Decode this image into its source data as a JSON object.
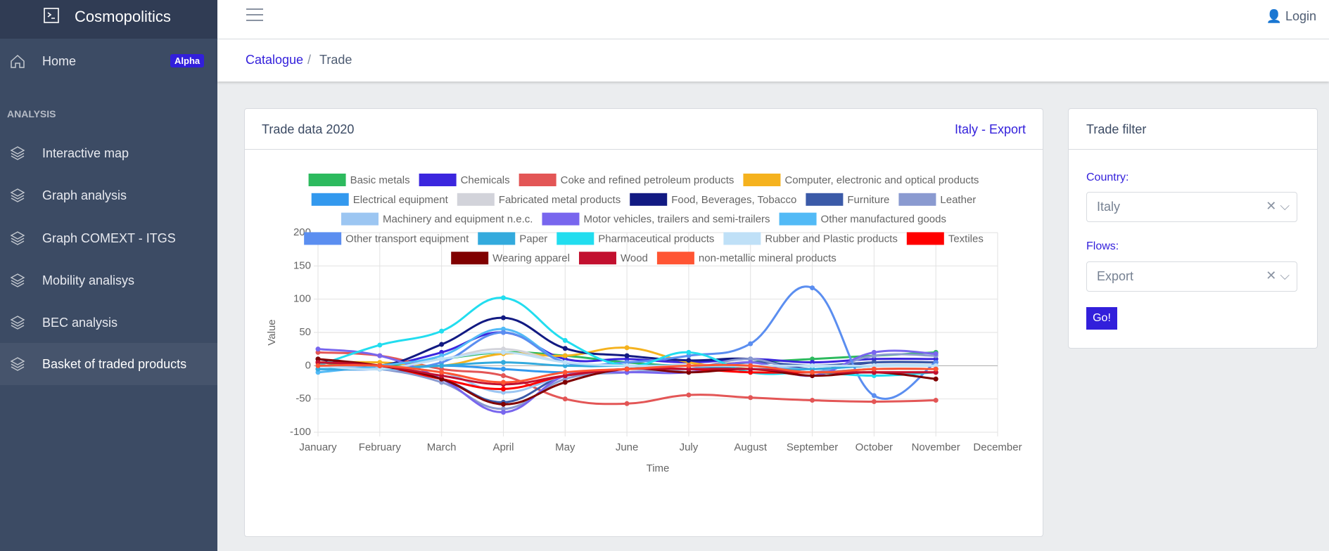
{
  "sidebar": {
    "brand": "Cosmopolitics",
    "home": "Home",
    "badge": "Alpha",
    "section": "ANALYSIS",
    "items": [
      "Interactive map",
      "Graph analysis",
      "Graph COMEXT - ITGS",
      "Mobility analisys",
      "BEC analysis",
      "Basket of traded products"
    ]
  },
  "header": {
    "login": "Login"
  },
  "breadcrumb": [
    "Catalogue",
    "Trade"
  ],
  "card": {
    "title": "Trade data 2020",
    "subtitle": "Italy - Export"
  },
  "filter": {
    "title": "Trade filter",
    "country_label": "Country:",
    "country": "Italy",
    "flows_label": "Flows:",
    "flows": "Export",
    "button": "Go!"
  },
  "chart_data": {
    "type": "line",
    "x_label": "Time",
    "y_label": "Value",
    "categories": [
      "January",
      "February",
      "March",
      "April",
      "May",
      "June",
      "July",
      "August",
      "September",
      "October",
      "November",
      "December"
    ],
    "ylim": [
      -100,
      200
    ],
    "yticks": [
      -100,
      -50,
      0,
      50,
      100,
      150,
      200
    ],
    "grid": true,
    "series": [
      {
        "name": "Basic metals",
        "color": "#2dba5e",
        "values": [
          5,
          0,
          10,
          20,
          15,
          5,
          0,
          5,
          10,
          15,
          20,
          null
        ]
      },
      {
        "name": "Chemicals",
        "color": "#3b26de",
        "values": [
          0,
          0,
          20,
          50,
          10,
          10,
          5,
          10,
          5,
          10,
          10,
          null
        ]
      },
      {
        "name": "Coke and refined petroleum products",
        "color": "#e35656",
        "values": [
          20,
          15,
          -5,
          -15,
          -50,
          -57,
          -44,
          -48,
          -52,
          -54,
          -52,
          null
        ]
      },
      {
        "name": "Computer, electronic and optical products",
        "color": "#f5b21e",
        "values": [
          5,
          5,
          0,
          18,
          15,
          27,
          5,
          -5,
          -10,
          -5,
          -5,
          null
        ]
      },
      {
        "name": "Electrical equipment",
        "color": "#3399ee",
        "values": [
          -5,
          -5,
          0,
          -5,
          -10,
          -5,
          -5,
          -5,
          -10,
          -5,
          -5,
          null
        ]
      },
      {
        "name": "Fabricated metal products",
        "color": "#d2d3da",
        "values": [
          0,
          -5,
          10,
          25,
          5,
          0,
          0,
          5,
          0,
          0,
          0,
          null
        ]
      },
      {
        "name": "Food, Beverages, Tobacco",
        "color": "#121a82",
        "values": [
          10,
          0,
          32,
          72,
          26,
          15,
          8,
          10,
          -5,
          5,
          5,
          null
        ]
      },
      {
        "name": "Furniture",
        "color": "#3b5aa8",
        "values": [
          0,
          -5,
          -20,
          -55,
          -15,
          -10,
          -5,
          5,
          0,
          5,
          5,
          null
        ]
      },
      {
        "name": "Leather",
        "color": "#8a9ad0",
        "values": [
          0,
          -5,
          -25,
          -65,
          -20,
          -10,
          -5,
          10,
          -10,
          15,
          15,
          null
        ]
      },
      {
        "name": "Machinery and equipment n.e.c.",
        "color": "#9cc6f2",
        "values": [
          0,
          -5,
          -10,
          -40,
          -15,
          -5,
          -5,
          0,
          -5,
          0,
          0,
          null
        ]
      },
      {
        "name": "Motor vehicles, trailers and semi-trailers",
        "color": "#7866ee",
        "values": [
          25,
          15,
          -20,
          -70,
          -15,
          -10,
          -10,
          5,
          -15,
          20,
          18,
          null
        ]
      },
      {
        "name": "Other manufactured goods",
        "color": "#52baf6",
        "values": [
          -10,
          0,
          15,
          55,
          5,
          0,
          -5,
          -5,
          -5,
          0,
          0,
          null
        ]
      },
      {
        "name": "Other transport equipment",
        "color": "#5b8ef0",
        "values": [
          -5,
          -5,
          5,
          50,
          5,
          5,
          15,
          33,
          117,
          -45,
          5,
          null
        ]
      },
      {
        "name": "Paper",
        "color": "#33aadd",
        "values": [
          -5,
          -5,
          0,
          5,
          0,
          0,
          0,
          -5,
          -5,
          0,
          0,
          null
        ]
      },
      {
        "name": "Pharmaceutical products",
        "color": "#22ddef",
        "values": [
          0,
          31,
          52,
          102,
          38,
          0,
          20,
          -10,
          -10,
          -15,
          -10,
          null
        ]
      },
      {
        "name": "Rubber and Plastic products",
        "color": "#bfe0f7",
        "values": [
          0,
          -5,
          10,
          20,
          5,
          0,
          0,
          0,
          0,
          0,
          0,
          null
        ]
      },
      {
        "name": "Textiles",
        "color": "#ff0000",
        "values": [
          5,
          0,
          -20,
          -35,
          -15,
          -5,
          -5,
          -10,
          -10,
          -10,
          -10,
          null
        ]
      },
      {
        "name": "Wearing apparel",
        "color": "#800000",
        "values": [
          10,
          0,
          -20,
          -58,
          -25,
          -5,
          -10,
          -5,
          -15,
          -10,
          -20,
          null
        ]
      },
      {
        "name": "Wood",
        "color": "#c2102f",
        "values": [
          5,
          0,
          -15,
          -28,
          -15,
          -5,
          -5,
          -5,
          -10,
          -10,
          -10,
          null
        ]
      },
      {
        "name": "non-metallic mineral products",
        "color": "#ff5533",
        "values": [
          0,
          0,
          -10,
          -25,
          -10,
          -5,
          0,
          0,
          -10,
          -5,
          -5,
          null
        ]
      }
    ]
  }
}
